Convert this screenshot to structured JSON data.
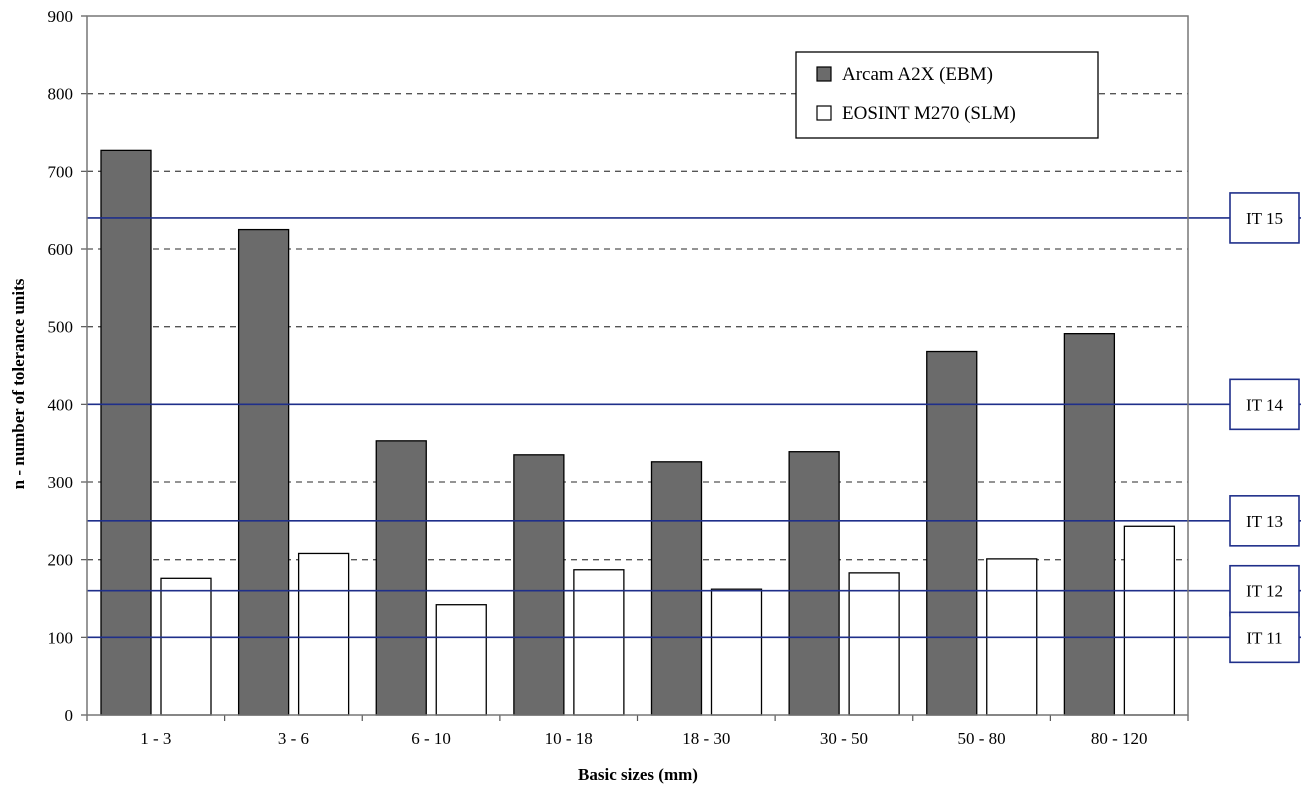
{
  "chart_data": {
    "type": "bar",
    "title": "",
    "xlabel": "Basic sizes (mm)",
    "ylabel": "n - number of tolerance units",
    "ylim": [
      0,
      900
    ],
    "yticks": [
      "0",
      "100",
      "200",
      "300",
      "400",
      "500",
      "600",
      "700",
      "800",
      "900"
    ],
    "grid": "dashed horizontal",
    "legend_position": "top-right",
    "categories": [
      "1 - 3",
      "3 - 6",
      "6 - 10",
      "10 - 18",
      "18 - 30",
      "30 - 50",
      "50 - 80",
      "80 - 120"
    ],
    "series": [
      {
        "name": "Arcam A2X (EBM)",
        "color": "#6b6b6b",
        "values": [
          727,
          625,
          353,
          335,
          326,
          339,
          468,
          491
        ]
      },
      {
        "name": "EOSINT M270 (SLM)",
        "color": "#ffffff",
        "values": [
          176,
          208,
          142,
          187,
          162,
          183,
          201,
          243
        ]
      }
    ],
    "reference_lines": [
      {
        "label": "IT 15",
        "value": 640,
        "color": "#1f2f8a"
      },
      {
        "label": "IT 14",
        "value": 400,
        "color": "#1f2f8a"
      },
      {
        "label": "IT 13",
        "value": 250,
        "color": "#1f2f8a"
      },
      {
        "label": "IT 12",
        "value": 160,
        "color": "#1f2f8a"
      },
      {
        "label": "IT 11",
        "value": 100,
        "color": "#1f2f8a"
      }
    ]
  }
}
